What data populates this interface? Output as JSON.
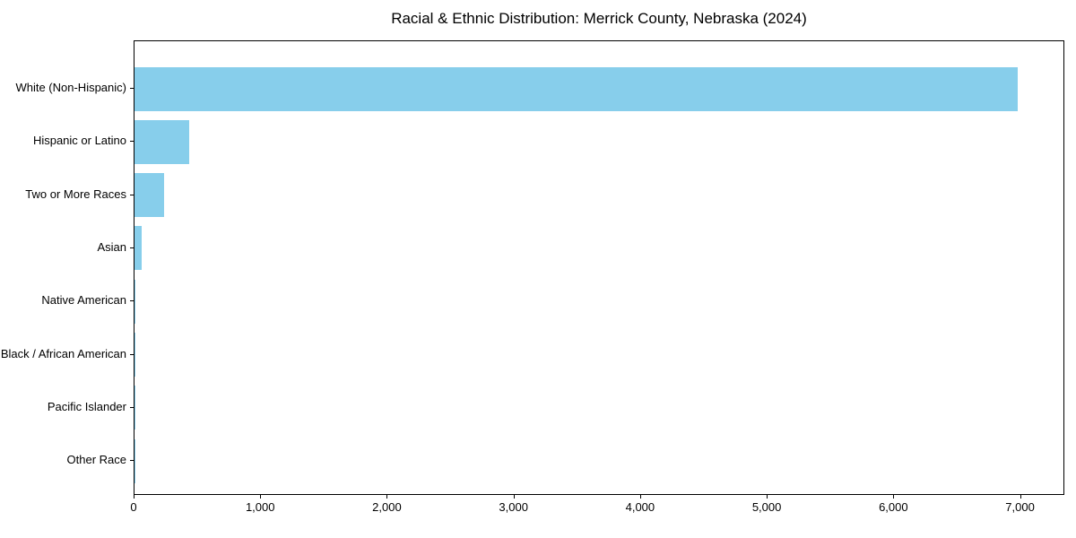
{
  "chart_data": {
    "type": "bar",
    "orientation": "horizontal",
    "title": "Racial & Ethnic Distribution: Merrick County, Nebraska (2024)",
    "categories": [
      "White (Non-Hispanic)",
      "Hispanic or Latino",
      "Two or More Races",
      "Asian",
      "Native American",
      "Black / African American",
      "Pacific Islander",
      "Other Race"
    ],
    "values": [
      6990,
      430,
      235,
      60,
      8,
      6,
      3,
      10
    ],
    "xlabel": "",
    "ylabel": "",
    "xlim": [
      0,
      7350
    ],
    "x_ticks": [
      0,
      1000,
      2000,
      3000,
      4000,
      5000,
      6000,
      7000
    ],
    "x_tick_labels": [
      "0",
      "1,000",
      "2,000",
      "3,000",
      "4,000",
      "5,000",
      "6,000",
      "7,000"
    ],
    "bar_color": "#87CEEB",
    "text_color": "#000000",
    "grid": false,
    "legend": null
  }
}
